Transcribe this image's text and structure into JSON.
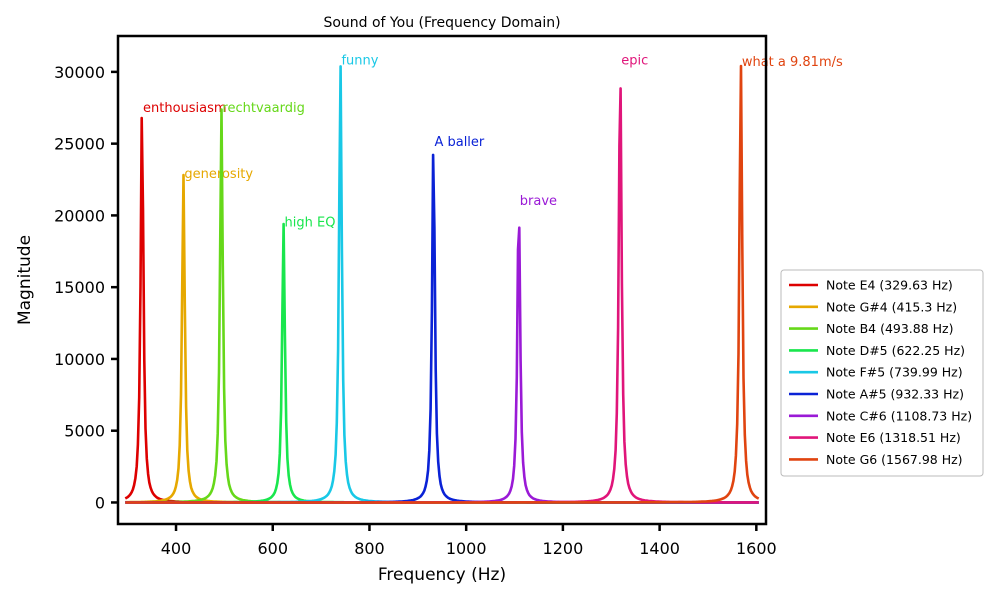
{
  "chart_data": {
    "type": "line",
    "title": "Sound of You (Frequency Domain)",
    "xlabel": "Frequency (Hz)",
    "ylabel": "Magnitude",
    "xlim": [
      280,
      1620
    ],
    "ylim": [
      -1500,
      32500
    ],
    "xticks": [
      400,
      600,
      800,
      1000,
      1200,
      1400,
      1600
    ],
    "yticks": [
      0,
      5000,
      10000,
      15000,
      20000,
      25000,
      30000
    ],
    "legend_position": "right",
    "series": [
      {
        "name": "Note E4 (329.63 Hz)",
        "freq": 329.63,
        "peak": 27500,
        "color": "#dd0000",
        "label": "enthousiasm"
      },
      {
        "name": "Note G#4 (415.3 Hz)",
        "freq": 415.3,
        "peak": 22900,
        "color": "#e6a800",
        "label": "generosity"
      },
      {
        "name": "Note B4 (493.88 Hz)",
        "freq": 493.88,
        "peak": 27500,
        "color": "#66d81a",
        "label": "rechtvaardig"
      },
      {
        "name": "Note D#5 (622.25 Hz)",
        "freq": 622.25,
        "peak": 19500,
        "color": "#19e64d",
        "label": "high EQ"
      },
      {
        "name": "Note F#5 (739.99 Hz)",
        "freq": 739.99,
        "peak": 30800,
        "color": "#19c8e6",
        "label": "funny"
      },
      {
        "name": "Note A#5 (932.33 Hz)",
        "freq": 932.33,
        "peak": 25100,
        "color": "#0a22d6",
        "label": "A baller"
      },
      {
        "name": "Note C#6 (1108.73 Hz)",
        "freq": 1108.73,
        "peak": 21000,
        "color": "#9a1ad6",
        "label": "brave"
      },
      {
        "name": "Note E6 (1318.51 Hz)",
        "freq": 1318.51,
        "peak": 30800,
        "color": "#e0157a",
        "label": "epic"
      },
      {
        "name": "Note G6 (1567.98 Hz)",
        "freq": 1567.98,
        "peak": 30700,
        "color": "#e04410",
        "label": "what a 9.81m/s"
      }
    ]
  }
}
